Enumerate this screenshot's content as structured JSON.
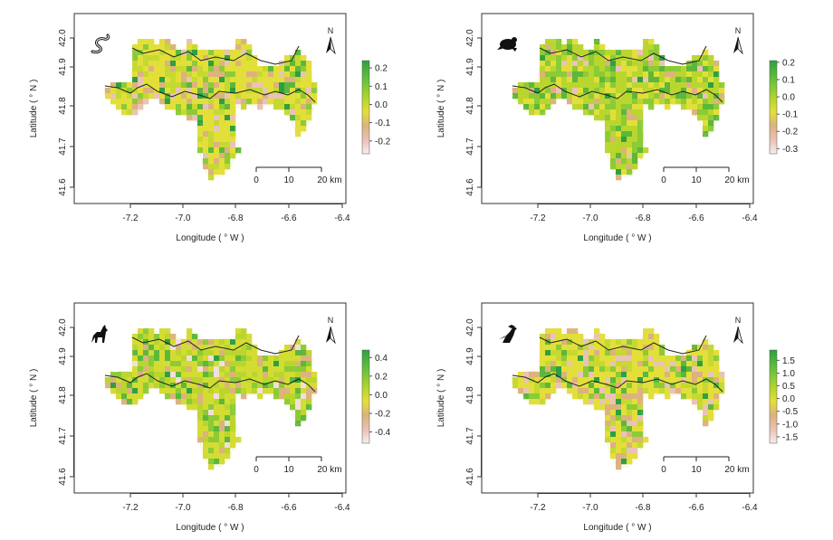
{
  "chart_data": [
    {
      "type": "heatmap",
      "panel_icon": "snake-icon",
      "xlabel": "Longitude ( ° W )",
      "ylabel": "Latitude ( ° N )",
      "x_ticks": [
        "-7.2",
        "-7.0",
        "-6.8",
        "-6.6",
        "-6.4"
      ],
      "y_ticks": [
        "41.6",
        "41.7",
        "41.8",
        "41.9",
        "42.0"
      ],
      "xlim": [
        -7.4,
        -6.4
      ],
      "ylim": [
        41.55,
        42.05
      ],
      "north_label": "N",
      "scalebar_ticks": [
        "0",
        "10",
        "20 km"
      ],
      "colorbar_ticks": [
        "0.2",
        "0.1",
        "0.0",
        "-0.1",
        "-0.2"
      ],
      "colorbar_range": [
        -0.27,
        0.24
      ],
      "palette": "low-bias",
      "seed": 11
    },
    {
      "type": "heatmap",
      "panel_icon": "frog-icon",
      "xlabel": "Longitude ( ° W )",
      "ylabel": "Latitude ( ° N )",
      "x_ticks": [
        "-7.2",
        "-7.0",
        "-6.8",
        "-6.6",
        "-6.4"
      ],
      "y_ticks": [
        "41.6",
        "41.7",
        "41.8",
        "41.9",
        "42.0"
      ],
      "xlim": [
        -7.4,
        -6.4
      ],
      "ylim": [
        41.55,
        42.05
      ],
      "north_label": "N",
      "scalebar_ticks": [
        "0",
        "10",
        "20 km"
      ],
      "colorbar_ticks": [
        "0.2",
        "0.1",
        "0.0",
        "-0.1",
        "-0.2",
        "-0.3"
      ],
      "colorbar_range": [
        -0.33,
        0.21
      ],
      "palette": "high-bias",
      "seed": 23
    },
    {
      "type": "heatmap",
      "panel_icon": "wolf-icon",
      "xlabel": "Longitude ( ° W )",
      "ylabel": "Latitude ( ° N )",
      "x_ticks": [
        "-7.2",
        "-7.0",
        "-6.8",
        "-6.6",
        "-6.4"
      ],
      "y_ticks": [
        "41.6",
        "41.7",
        "41.8",
        "41.9",
        "42.0"
      ],
      "xlim": [
        -7.4,
        -6.4
      ],
      "ylim": [
        41.55,
        42.05
      ],
      "north_label": "N",
      "scalebar_ticks": [
        "0",
        "10",
        "20 km"
      ],
      "colorbar_ticks": [
        "0.4",
        "0.2",
        "0.0",
        "-0.2",
        "-0.4"
      ],
      "colorbar_range": [
        -0.52,
        0.48
      ],
      "palette": "mid-bias",
      "seed": 37
    },
    {
      "type": "heatmap",
      "panel_icon": "bird-icon",
      "xlabel": "Longitude ( ° W )",
      "ylabel": "Latitude ( ° N )",
      "x_ticks": [
        "-7.2",
        "-7.0",
        "-6.8",
        "-6.6",
        "-6.4"
      ],
      "y_ticks": [
        "41.6",
        "41.7",
        "41.8",
        "41.9",
        "42.0"
      ],
      "xlim": [
        -7.4,
        -6.4
      ],
      "ylim": [
        41.55,
        42.05
      ],
      "north_label": "N",
      "scalebar_ticks": [
        "0",
        "10",
        "20 km"
      ],
      "colorbar_ticks": [
        "1.5",
        "1.0",
        "0.5",
        "0.0",
        "-0.5",
        "-1.0",
        "-1.5"
      ],
      "colorbar_range": [
        -1.75,
        1.9
      ],
      "palette": "low-bias",
      "seed": 53
    }
  ],
  "colors": {
    "green_dark": "#2ea043",
    "green": "#6cc23a",
    "yellow_green": "#b9d62e",
    "yellow": "#e3df3a",
    "tan": "#dcb27e",
    "pink": "#e9c3b6",
    "white": "#f6efee",
    "outline": "#222222"
  }
}
